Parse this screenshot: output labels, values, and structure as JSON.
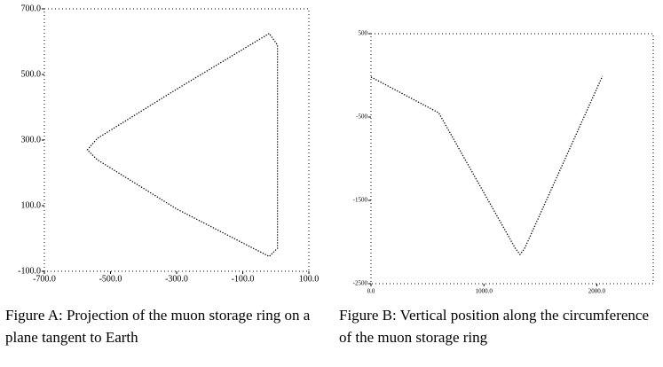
{
  "chart_data": [
    {
      "type": "line",
      "caption": "Figure A: Projection of the muon storage ring on a plane tangent to Earth",
      "x": [
        -20,
        -300,
        -540,
        -570,
        -540,
        -300,
        -20,
        5,
        5,
        -20
      ],
      "values": [
        625,
        455,
        305,
        270,
        240,
        90,
        -55,
        -30,
        590,
        625
      ],
      "color": "#000000",
      "xlim": [
        -700,
        100
      ],
      "ylim": [
        -100,
        700
      ],
      "xticks": [
        {
          "value": -700,
          "label": "-700.0"
        },
        {
          "value": -500,
          "label": "-500.0"
        },
        {
          "value": -300,
          "label": "-300.0"
        },
        {
          "value": -100,
          "label": "-100.0"
        },
        {
          "value": 100,
          "label": "100.0"
        }
      ],
      "yticks": [
        {
          "value": -100,
          "label": "-100.0"
        },
        {
          "value": 100,
          "label": "100.0"
        },
        {
          "value": 300,
          "label": "300.0"
        },
        {
          "value": 500,
          "label": "500.0"
        },
        {
          "value": 700,
          "label": "700.0"
        }
      ]
    },
    {
      "type": "line",
      "caption": "Figure B: Vertical position along the circumference of the muon storage ring",
      "x": [
        0,
        600,
        1280,
        1320,
        1360,
        2050
      ],
      "values": [
        -20,
        -450,
        -2080,
        -2150,
        -2080,
        -10
      ],
      "color": "#000000",
      "xlim": [
        0,
        2500
      ],
      "ylim": [
        -2500,
        500
      ],
      "xticks": [
        {
          "value": 0,
          "label": "0.0"
        },
        {
          "value": 1000,
          "label": "1000.0"
        },
        {
          "value": 2000,
          "label": "2000.0"
        }
      ],
      "yticks": [
        -2500,
        -1500,
        -500,
        500
      ]
    }
  ]
}
